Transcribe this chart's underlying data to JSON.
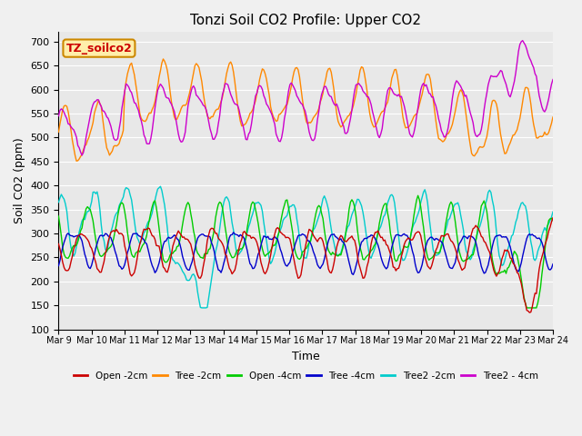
{
  "title": "Tonzi Soil CO2 Profile: Upper CO2",
  "xlabel": "Time",
  "ylabel": "Soil CO2 (ppm)",
  "ylim": [
    100,
    720
  ],
  "yticks": [
    100,
    150,
    200,
    250,
    300,
    350,
    400,
    450,
    500,
    550,
    600,
    650,
    700
  ],
  "annotation_text": "TZ_soilco2",
  "annotation_color": "#cc0000",
  "annotation_bg": "#ffeeaa",
  "annotation_border": "#cc8800",
  "series": {
    "Open_2cm": {
      "color": "#cc0000",
      "label": "Open -2cm"
    },
    "Tree_2cm": {
      "color": "#ff8800",
      "label": "Tree -2cm"
    },
    "Open_4cm": {
      "color": "#00cc00",
      "label": "Open -4cm"
    },
    "Tree_4cm": {
      "color": "#0000cc",
      "label": "Tree -4cm"
    },
    "Tree2_2cm": {
      "color": "#00cccc",
      "label": "Tree2 -2cm"
    },
    "Tree2_4cm": {
      "color": "#cc00cc",
      "label": "Tree2 - 4cm"
    }
  },
  "x_tick_labels": [
    "Mar 9",
    "Mar 10",
    "Mar 11",
    "Mar 12",
    "Mar 13",
    "Mar 14",
    "Mar 15",
    "Mar 16",
    "Mar 17",
    "Mar 18",
    "Mar 19",
    "Mar 20",
    "Mar 21",
    "Mar 22",
    "Mar 23",
    "Mar 24"
  ],
  "background_color": "#e8e8e8",
  "grid_color": "#ffffff",
  "fig_bg": "#f0f0f0"
}
